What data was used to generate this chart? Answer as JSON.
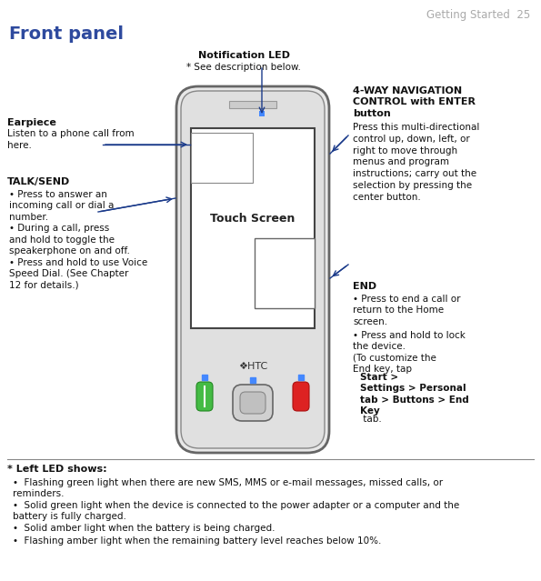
{
  "title_right": "Getting Started  25",
  "title_left": "Front panel",
  "title_left_color": "#2e4a9e",
  "bg_color": "#ffffff",
  "notification_led_label": "Notification LED",
  "notification_led_sub": "* See description below.",
  "touch_screen_label": "Touch Screen",
  "nav_label": "4-WAY NAVIGATION\nCONTROL with ENTER\nbutton",
  "nav_body": "Press this multi-directional\ncontrol up, down, left, or\nright to move through\nmenus and program\ninstructions; carry out the\nselection by pressing the\ncenter button.",
  "earpiece_bold": "Earpiece",
  "earpiece_body": "Listen to a phone call from\nhere.",
  "talk_send_label": "TALK/SEND",
  "talk_send_bullets": [
    "Press to answer an\nincoming call or dial a\nnumber.",
    "During a call, press\nand hold to toggle the\nspeakerphone on and off.",
    "Press and hold to use Voice\nSpeed Dial. (See Chapter\n12 for details.)"
  ],
  "end_label": "END",
  "end_bullet1": "Press to end a call or\nreturn to the Home\nscreen.",
  "end_bullet2_plain": "Press and hold to lock\nthe device.\n(To customize the\nEnd key, tap ",
  "end_bullet2_bold": "Start >\nSettings > Personal\ntab > Buttons > End\nKey",
  "end_bullet2_end": " tab.",
  "footer_header": "* Left LED shows:",
  "footer_bullets": [
    "Flashing green light when there are new SMS, MMS or e-mail messages, missed calls, or\nreminders.",
    "Solid green light when the device is connected to the power adapter or a computer and the\nbattery is fully charged.",
    "Solid amber light when the battery is being charged.",
    "Flashing amber light when the remaining battery level reaches below 10%."
  ],
  "phone_outline_color": "#444444",
  "screen_outline_color": "#444444",
  "arrow_color": "#1a3a8a",
  "green_btn_color": "#44bb44",
  "red_btn_color": "#dd2222",
  "led_blue_color": "#4488ff"
}
